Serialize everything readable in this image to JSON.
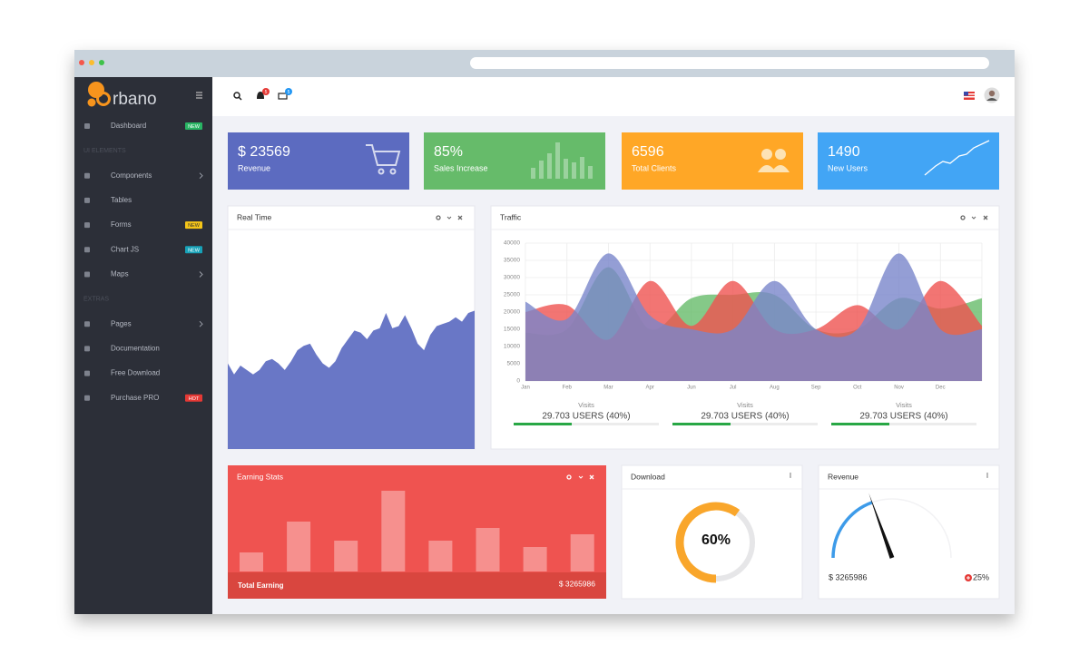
{
  "sidebar": {
    "logo": "rbano",
    "groups": [
      {
        "items": [
          {
            "label": "Dashboard",
            "badge": "NEW",
            "badge_color": "#28b463"
          }
        ]
      },
      {
        "heading": "UI ELEMENTS",
        "items": [
          {
            "label": "Components",
            "submenu": true
          },
          {
            "label": "Tables"
          },
          {
            "label": "Forms",
            "badge": "NEW",
            "badge_color": "#f5c518"
          },
          {
            "label": "Chart JS",
            "badge": "NEW",
            "badge_color": "#17a2b8"
          },
          {
            "label": "Maps",
            "submenu": true
          }
        ]
      },
      {
        "heading": "EXTRAS",
        "items": [
          {
            "label": "Pages",
            "submenu": true
          },
          {
            "label": "Documentation"
          },
          {
            "label": "Free Download"
          },
          {
            "label": "Purchase PRO",
            "badge": "HOT",
            "badge_color": "#e53935"
          }
        ]
      }
    ]
  },
  "topbar": {
    "notifications": "5",
    "messages": "5"
  },
  "stats": [
    {
      "value": "$ 23569",
      "label": "Revenue",
      "color": "#5c6bc0"
    },
    {
      "value": "85%",
      "label": "Sales Increase",
      "color": "#66bb6a"
    },
    {
      "value": "6596",
      "label": "Total Clients",
      "color": "#ffa726"
    },
    {
      "value": "1490",
      "label": "New Users",
      "color": "#42a5f5"
    }
  ],
  "realtime": {
    "title": "Real Time",
    "color": "#6977c6",
    "ylim": [
      0,
      100
    ],
    "values": [
      39,
      34,
      38,
      36,
      34,
      36,
      40,
      41,
      39,
      36,
      40,
      45,
      47,
      48,
      43,
      39,
      37,
      40,
      46,
      50,
      54,
      53,
      50,
      54,
      55,
      62,
      55,
      56,
      61,
      55,
      48,
      45,
      52,
      56,
      57,
      58,
      60,
      58,
      62,
      63
    ]
  },
  "traffic": {
    "title": "Traffic",
    "type": "area",
    "grid": true,
    "categories": [
      "Jan",
      "Feb",
      "Mar",
      "Apr",
      "Jun",
      "Jul",
      "Aug",
      "Sep",
      "Oct",
      "Nov",
      "Dec",
      null
    ],
    "ylim": [
      0,
      40000
    ],
    "yticks": [
      0,
      5000,
      10000,
      15000,
      20000,
      25000,
      30000,
      35000,
      40000
    ],
    "series": [
      {
        "color": "#66bb6a",
        "values": [
          14000,
          15000,
          33000,
          15000,
          24000,
          25000,
          25000,
          15000,
          15000,
          24000,
          21000,
          24000
        ]
      },
      {
        "color": "#ef5350",
        "values": [
          20000,
          22000,
          12000,
          29000,
          16000,
          29000,
          15000,
          15000,
          22000,
          15000,
          29000,
          16000
        ]
      },
      {
        "color": "#7986cb",
        "values": [
          23000,
          18000,
          37000,
          19000,
          15000,
          15000,
          29000,
          15000,
          15000,
          37000,
          15000,
          15000
        ]
      }
    ],
    "visits": [
      {
        "label": "Visits",
        "text": "29.703 USERS (40%)",
        "percent": 40
      },
      {
        "label": "Visits",
        "text": "29.703 USERS (40%)",
        "percent": 40
      },
      {
        "label": "Visits",
        "text": "29.703 USERS (40%)",
        "percent": 40
      }
    ]
  },
  "earning": {
    "title": "Earning Stats",
    "ylim": [
      0,
      100
    ],
    "values": [
      21,
      55,
      34,
      89,
      34,
      48,
      27,
      41
    ],
    "footer_label": "Total Earning",
    "footer_value": "$ 3265986"
  },
  "download": {
    "title": "Download",
    "value": 60,
    "value_label": "60%",
    "color": "#f9a62b"
  },
  "revenue": {
    "title": "Revenue",
    "value": 39,
    "lim": [
      0,
      100
    ],
    "amount": "$ 3265986",
    "change": "25%",
    "color": "#3d9be9"
  }
}
